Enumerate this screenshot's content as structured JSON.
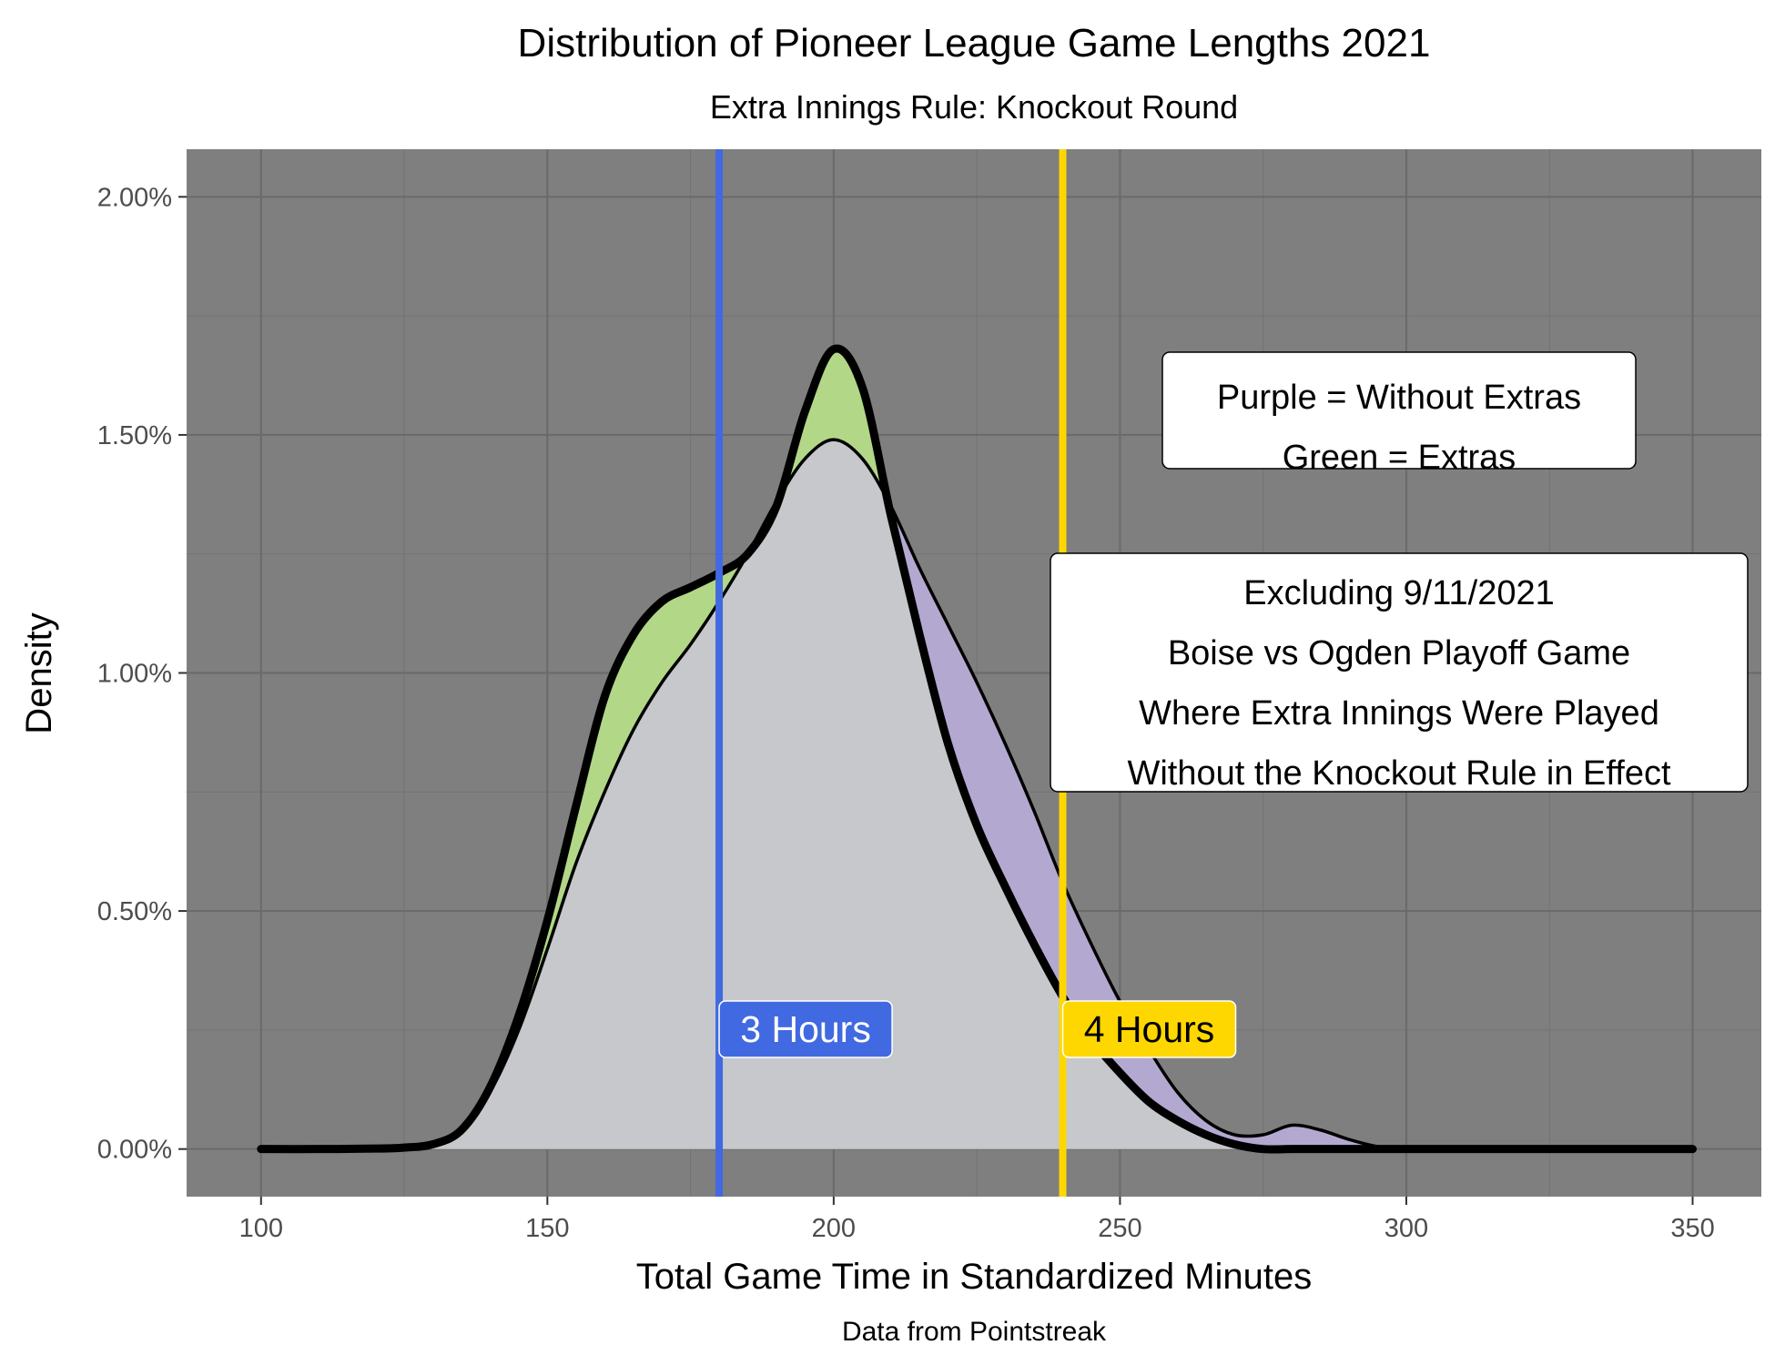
{
  "chart_data": {
    "type": "area",
    "title": "Distribution of Pioneer League Game Lengths 2021",
    "subtitle": "Extra Innings Rule: Knockout Round",
    "xlabel": "Total Game Time in Standardized Minutes",
    "ylabel": "Density",
    "caption": "Data from Pointstreak",
    "xlim": [
      87,
      362
    ],
    "ylim": [
      -0.001,
      0.021
    ],
    "x_ticks": [
      100,
      150,
      200,
      250,
      300,
      350
    ],
    "x_tick_labels": [
      "100",
      "150",
      "200",
      "250",
      "300",
      "350"
    ],
    "y_ticks": [
      0,
      0.005,
      0.01,
      0.015,
      0.02
    ],
    "y_tick_labels": [
      "0.00%",
      "0.50%",
      "1.00%",
      "1.50%",
      "2.00%"
    ],
    "grid": true,
    "x": [
      100,
      110,
      120,
      125,
      130,
      135,
      140,
      145,
      150,
      155,
      160,
      165,
      170,
      175,
      180,
      185,
      190,
      195,
      200,
      205,
      210,
      215,
      220,
      225,
      230,
      235,
      240,
      245,
      250,
      255,
      260,
      265,
      270,
      275,
      280,
      285,
      290,
      295,
      300,
      310,
      320,
      330,
      340,
      350
    ],
    "series": [
      {
        "name": "Without Extras",
        "fill": "#b3a9d0",
        "values": [
          0,
          0,
          1e-05,
          3e-05,
          0.0001,
          0.0004,
          0.0012,
          0.0025,
          0.0042,
          0.006,
          0.0075,
          0.0088,
          0.0098,
          0.0106,
          0.0115,
          0.0125,
          0.0136,
          0.0145,
          0.0149,
          0.0145,
          0.0135,
          0.0122,
          0.011,
          0.0098,
          0.0085,
          0.0071,
          0.0056,
          0.0043,
          0.0031,
          0.0021,
          0.0012,
          0.0006,
          0.0003,
          0.0003,
          0.0005,
          0.0004,
          0.0002,
          5e-05,
          0,
          0,
          0,
          0,
          0,
          0
        ]
      },
      {
        "name": "Extras",
        "fill": "#b2d887",
        "values": [
          0,
          0,
          1e-05,
          3e-05,
          0.0001,
          0.0004,
          0.0013,
          0.0028,
          0.0048,
          0.0072,
          0.0095,
          0.0108,
          0.0115,
          0.0118,
          0.0121,
          0.0125,
          0.0135,
          0.0155,
          0.0168,
          0.016,
          0.0133,
          0.0108,
          0.0085,
          0.0068,
          0.0055,
          0.0043,
          0.0032,
          0.0023,
          0.0016,
          0.001,
          0.0006,
          0.0003,
          0.0001,
          0,
          0,
          0,
          0,
          0,
          0,
          0,
          0,
          0,
          0,
          0
        ]
      }
    ],
    "vlines": [
      {
        "x": 180,
        "label": "3 Hours",
        "color": "#4169e1",
        "text_color": "#ffffff"
      },
      {
        "x": 240,
        "label": "4 Hours",
        "color": "#ffd700",
        "text_color": "#000000"
      }
    ],
    "annotations": [
      {
        "lines": [
          "Purple = Without Extras",
          "Green = Extras"
        ]
      },
      {
        "lines": [
          "Excluding 9/11/2021",
          "Boise vs Ogden Playoff Game",
          "Where Extra Innings Were Played",
          "Without the Knockout Rule in Effect"
        ]
      }
    ],
    "colors": {
      "panel": "#7f7f7f",
      "grid_major": "#6a6a6a",
      "grid_minor": "#737373",
      "overlap": "#c6c8cb"
    }
  }
}
